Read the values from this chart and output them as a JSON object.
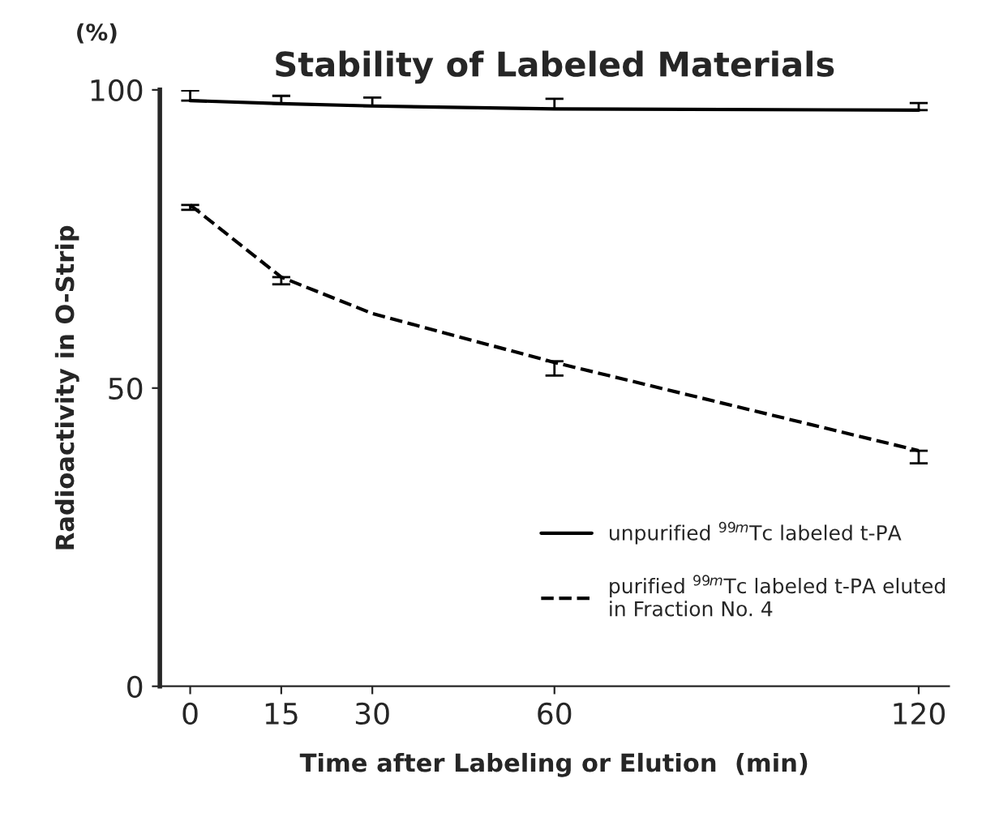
{
  "chart_data": {
    "type": "line",
    "title": "Stability of Labeled Materials",
    "xlabel": "Time after Labeling or Elution  (min)",
    "ylabel": "Radioactivity in O-Strip",
    "annotations": [
      "(%)"
    ],
    "x": [
      0,
      15,
      30,
      60,
      120
    ],
    "series": [
      {
        "name": "unpurified $^{99m}$Tc labeled t-PA",
        "color": "#000000",
        "line_style": "solid",
        "values": [
          98.2,
          97.7,
          97.3,
          96.8,
          96.6
        ],
        "errors": [
          [
            98.2,
            99.9
          ],
          [
            97.7,
            99.0
          ],
          [
            97.3,
            98.7
          ],
          [
            96.8,
            98.5
          ],
          [
            96.6,
            97.8
          ]
        ]
      },
      {
        "name": "purified $^{99m}$Tc labeled t-PA eluted\nin Fraction No. 4",
        "color": "#000000",
        "line_style": "dashed",
        "values": [
          80.7,
          68.6,
          62.5,
          54.3,
          39.5
        ],
        "errors": [
          [
            79.9,
            80.7
          ],
          [
            67.4,
            68.6
          ],
          null,
          [
            52.1,
            54.5
          ],
          [
            37.4,
            39.5
          ]
        ]
      }
    ],
    "xlim": [
      -5,
      125
    ],
    "ylim": [
      0,
      100
    ],
    "xticks": [
      0,
      15,
      30,
      60,
      120
    ],
    "yticks": [
      0,
      50,
      100
    ],
    "grid": false,
    "legend": "bottom right",
    "marker": "none"
  }
}
